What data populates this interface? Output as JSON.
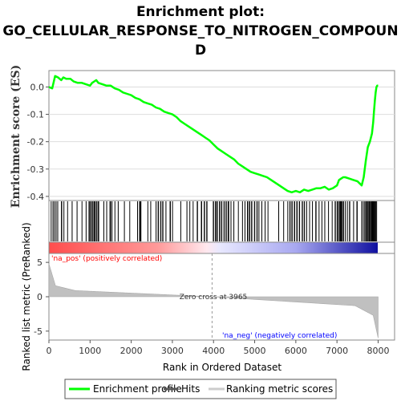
{
  "chart_data": {
    "type": "line",
    "title_lines": [
      "Enrichment plot:",
      "GO_CELLULAR_RESPONSE_TO_NITROGEN_COMPOUN",
      "D"
    ],
    "ylabel_top": "Enrichment score (ES)",
    "ylabel_bottom": "Ranked list metric (PreRanked)",
    "xlabel": "Rank in Ordered Dataset",
    "x_ticks": [
      0,
      1000,
      2000,
      3000,
      4000,
      5000,
      6000,
      7000,
      8000
    ],
    "es_ticks": [
      "0.0",
      "-0.1",
      "-0.2",
      "-0.3",
      "-0.4"
    ],
    "es_tick_values": [
      0.0,
      -0.1,
      -0.2,
      -0.3,
      -0.4
    ],
    "metric_ticks": [
      5,
      0,
      -5
    ],
    "xlim": [
      0,
      8400
    ],
    "es_ylim": [
      -0.415,
      0.06
    ],
    "metric_ylim": [
      -6.3,
      6.3
    ],
    "n_genes": 8000,
    "zero_cross": 3965,
    "zero_cross_label": "Zero cross at 3965",
    "pos_label": "'na_pos' (positively correlated)",
    "neg_label": "'na_neg' (negatively correlated)",
    "series": [
      {
        "name": "Enrichment profile",
        "color": "#00ff00",
        "x": [
          0,
          80,
          150,
          220,
          300,
          350,
          420,
          520,
          600,
          700,
          800,
          900,
          1000,
          1050,
          1100,
          1150,
          1200,
          1300,
          1400,
          1500,
          1600,
          1700,
          1800,
          1900,
          2000,
          2100,
          2200,
          2300,
          2400,
          2500,
          2600,
          2700,
          2800,
          2900,
          3000,
          3100,
          3200,
          3300,
          3400,
          3500,
          3600,
          3700,
          3800,
          3900,
          4000,
          4100,
          4200,
          4300,
          4400,
          4500,
          4600,
          4700,
          4800,
          4900,
          5000,
          5100,
          5200,
          5300,
          5400,
          5500,
          5600,
          5700,
          5800,
          5900,
          6000,
          6100,
          6200,
          6300,
          6400,
          6500,
          6600,
          6700,
          6800,
          6900,
          7000,
          7050,
          7100,
          7150,
          7200,
          7300,
          7400,
          7500,
          7600,
          7650,
          7700,
          7750,
          7800,
          7850,
          7880,
          7900,
          7920,
          7940,
          7960,
          7980,
          8000
        ],
        "y": [
          0.0,
          -0.005,
          0.04,
          0.035,
          0.025,
          0.035,
          0.03,
          0.03,
          0.02,
          0.015,
          0.015,
          0.01,
          0.005,
          0.015,
          0.02,
          0.025,
          0.015,
          0.01,
          0.005,
          0.005,
          -0.005,
          -0.01,
          -0.02,
          -0.025,
          -0.03,
          -0.04,
          -0.045,
          -0.055,
          -0.06,
          -0.065,
          -0.075,
          -0.08,
          -0.09,
          -0.095,
          -0.1,
          -0.11,
          -0.125,
          -0.135,
          -0.145,
          -0.155,
          -0.165,
          -0.175,
          -0.185,
          -0.195,
          -0.21,
          -0.225,
          -0.235,
          -0.245,
          -0.255,
          -0.265,
          -0.28,
          -0.29,
          -0.3,
          -0.31,
          -0.315,
          -0.32,
          -0.325,
          -0.33,
          -0.34,
          -0.35,
          -0.36,
          -0.37,
          -0.38,
          -0.385,
          -0.38,
          -0.385,
          -0.375,
          -0.38,
          -0.375,
          -0.37,
          -0.37,
          -0.365,
          -0.375,
          -0.37,
          -0.36,
          -0.34,
          -0.335,
          -0.33,
          -0.33,
          -0.335,
          -0.34,
          -0.345,
          -0.36,
          -0.33,
          -0.27,
          -0.22,
          -0.2,
          -0.17,
          -0.13,
          -0.09,
          -0.05,
          -0.02,
          0.0,
          0.005,
          0.005
        ]
      }
    ],
    "hit_ranges": [
      [
        50,
        60
      ],
      [
        95,
        110
      ],
      [
        130,
        140
      ],
      [
        170,
        180
      ],
      [
        210,
        220
      ],
      [
        300,
        320
      ],
      [
        360,
        370
      ],
      [
        450,
        460
      ],
      [
        560,
        570
      ],
      [
        680,
        690
      ],
      [
        800,
        810
      ],
      [
        900,
        910
      ],
      [
        970,
        990
      ],
      [
        1010,
        1040
      ],
      [
        1060,
        1080
      ],
      [
        1100,
        1130
      ],
      [
        1150,
        1170
      ],
      [
        1190,
        1220
      ],
      [
        1330,
        1340
      ],
      [
        1400,
        1410
      ],
      [
        1480,
        1510
      ],
      [
        1530,
        1540
      ],
      [
        1600,
        1610
      ],
      [
        1680,
        1690
      ],
      [
        1830,
        1840
      ],
      [
        1960,
        1970
      ],
      [
        2150,
        2160
      ],
      [
        2200,
        2240
      ],
      [
        2400,
        2410
      ],
      [
        2470,
        2480
      ],
      [
        2600,
        2610
      ],
      [
        2650,
        2670
      ],
      [
        2710,
        2730
      ],
      [
        2760,
        2780
      ],
      [
        2840,
        2850
      ],
      [
        2940,
        2960
      ],
      [
        3000,
        3010
      ],
      [
        3200,
        3210
      ],
      [
        3350,
        3360
      ],
      [
        3420,
        3430
      ],
      [
        3500,
        3510
      ],
      [
        3600,
        3620
      ],
      [
        3700,
        3720
      ],
      [
        3770,
        3790
      ],
      [
        3830,
        3850
      ],
      [
        3990,
        4010
      ],
      [
        4040,
        4060
      ],
      [
        4080,
        4100
      ],
      [
        4140,
        4160
      ],
      [
        4190,
        4210
      ],
      [
        4250,
        4270
      ],
      [
        4300,
        4320
      ],
      [
        4350,
        4380
      ],
      [
        4420,
        4430
      ],
      [
        4490,
        4500
      ],
      [
        4600,
        4610
      ],
      [
        4700,
        4710
      ],
      [
        4760,
        4770
      ],
      [
        4820,
        4840
      ],
      [
        4870,
        4890
      ],
      [
        4920,
        4940
      ],
      [
        4990,
        5010
      ],
      [
        5050,
        5070
      ],
      [
        5100,
        5110
      ],
      [
        5170,
        5180
      ],
      [
        5250,
        5260
      ],
      [
        5320,
        5330
      ],
      [
        5580,
        5590
      ],
      [
        5700,
        5710
      ],
      [
        5800,
        5810
      ],
      [
        5850,
        5870
      ],
      [
        5900,
        5920
      ],
      [
        5960,
        5980
      ],
      [
        6020,
        6040
      ],
      [
        6080,
        6100
      ],
      [
        6150,
        6170
      ],
      [
        6200,
        6220
      ],
      [
        6260,
        6270
      ],
      [
        6330,
        6340
      ],
      [
        6400,
        6410
      ],
      [
        6480,
        6500
      ],
      [
        6560,
        6570
      ],
      [
        6630,
        6640
      ],
      [
        6700,
        6710
      ],
      [
        6790,
        6800
      ],
      [
        6880,
        6890
      ],
      [
        6950,
        6970
      ],
      [
        7000,
        7030
      ],
      [
        7050,
        7070
      ],
      [
        7080,
        7100
      ],
      [
        7110,
        7130
      ],
      [
        7150,
        7170
      ],
      [
        7200,
        7210
      ],
      [
        7250,
        7260
      ],
      [
        7300,
        7320
      ],
      [
        7400,
        7410
      ],
      [
        7480,
        7500
      ],
      [
        7600,
        7620
      ],
      [
        7650,
        7670
      ],
      [
        7690,
        7710
      ],
      [
        7720,
        7740
      ],
      [
        7750,
        7770
      ],
      [
        7780,
        7800
      ],
      [
        7810,
        7830
      ],
      [
        7840,
        7850
      ],
      [
        7860,
        7870
      ],
      [
        7880,
        7890
      ],
      [
        7900,
        7910
      ],
      [
        7920,
        7930
      ],
      [
        7940,
        7950
      ],
      [
        7960,
        7970
      ]
    ],
    "legend": {
      "enrichment_profile": "Enrichment profile",
      "hits": "Hits",
      "ranking_metric_scores": "Ranking metric scores"
    },
    "colors": {
      "profile": "#00ff00",
      "hit": "#000000",
      "metric_fill": "#c0c0c0",
      "zero_cross_line": "#999999",
      "pos_text": "#ff0000",
      "neg_text": "#0000ff",
      "heat_pos": "#ff0000",
      "heat_neg": "#0000ff"
    }
  }
}
